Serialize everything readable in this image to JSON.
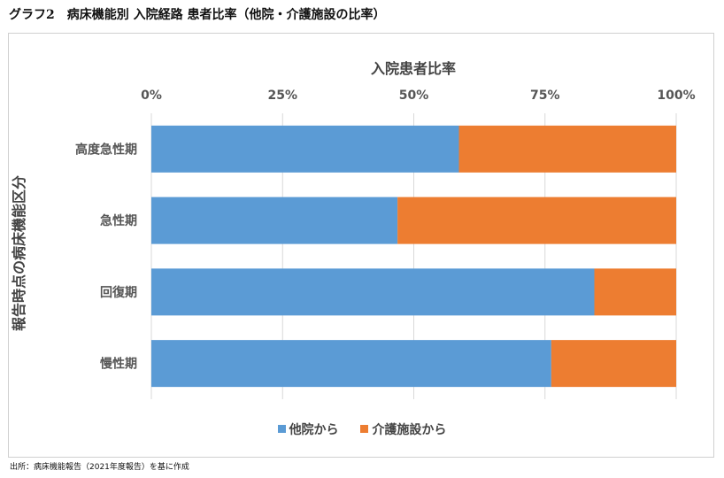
{
  "title": "グラフ2　病床機能別 入院経路 患者比率（他院・介護施設の比率）",
  "source": "出所：病床機能報告（2021年度報告）を基に作成",
  "chart_data": {
    "type": "bar",
    "orientation": "horizontal",
    "stacked": "percent",
    "xlabel": "入院患者比率",
    "ylabel": "報告時点の病床機能区分",
    "xlim": [
      0,
      100
    ],
    "xticks": [
      "0%",
      "25%",
      "50%",
      "75%",
      "100%"
    ],
    "xtick_values": [
      0,
      25,
      50,
      75,
      100
    ],
    "x_axis_position": "top",
    "grid": true,
    "legend_position": "bottom",
    "categories": [
      "高度急性期",
      "急性期",
      "回復期",
      "慢性期"
    ],
    "series": [
      {
        "name": "他院から",
        "color": "#5B9BD5",
        "values": [
          58.6,
          46.9,
          84.4,
          76.2
        ]
      },
      {
        "name": "介護施設から",
        "color": "#ED7D31",
        "values": [
          41.4,
          53.1,
          15.6,
          23.8
        ]
      }
    ]
  }
}
